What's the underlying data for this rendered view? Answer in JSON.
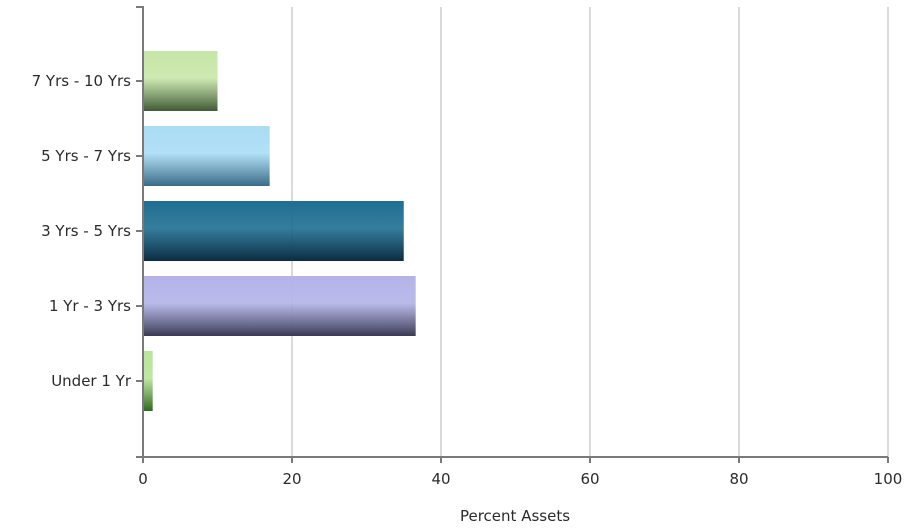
{
  "chart_data": {
    "type": "bar",
    "orientation": "horizontal",
    "categories": [
      "7 Yrs - 10 Yrs",
      "5 Yrs - 7 Yrs",
      "3 Yrs - 5 Yrs",
      "1 Yr - 3 Yrs",
      "Under 1 Yr"
    ],
    "values": [
      10,
      17,
      35,
      36.6,
      1.3
    ],
    "bar_colors": [
      [
        "#c8e6a8",
        "#3f5a36"
      ],
      [
        "#a9dcf5",
        "#3a6a86"
      ],
      [
        "#1f6e92",
        "#0b2c40"
      ],
      [
        "#b3b3e8",
        "#3a3a55"
      ],
      [
        "#b8e59a",
        "#2f6a1c"
      ]
    ],
    "xlabel": "Percent Assets",
    "ylabel": "",
    "xlim": [
      0,
      100
    ],
    "xticks": [
      0,
      20,
      40,
      60,
      80,
      100
    ],
    "xtick_labels": [
      "0",
      "20",
      "40",
      "60",
      "80",
      "100"
    ],
    "grid": "vertical",
    "legend": "none"
  }
}
